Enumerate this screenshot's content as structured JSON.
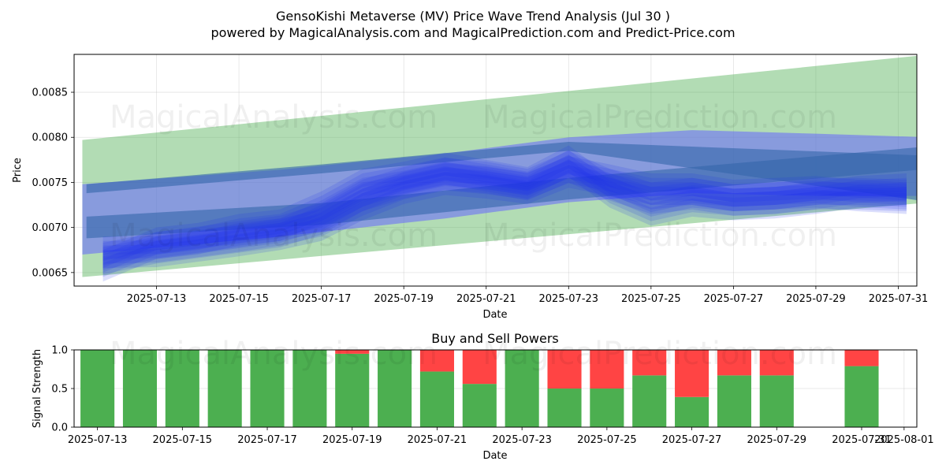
{
  "header": {
    "title": "GensoKishi Metaverse (MV) Price Wave Trend Analysis (Jul 30 )",
    "subtitle": "powered by MagicalAnalysis.com and MagicalPrediction.com and Predict-Price.com"
  },
  "watermarks": [
    "MagicalAnalysis.com",
    "MagicalPrediction.com"
  ],
  "colors": {
    "green_band": "#4caf50",
    "blue_band": "#6666ff",
    "dark_blue": "#3366aa",
    "buy": "#4caf50",
    "sell": "#ff4444"
  },
  "chart_data": [
    {
      "type": "area",
      "xlabel": "Date",
      "ylabel": "Price",
      "ylim": [
        0.00635,
        0.00892
      ],
      "xlim": [
        "2025-07-11",
        "2025-07-31.45"
      ],
      "x_ticks": [
        "2025-07-13",
        "2025-07-15",
        "2025-07-17",
        "2025-07-19",
        "2025-07-21",
        "2025-07-23",
        "2025-07-25",
        "2025-07-27",
        "2025-07-29",
        "2025-07-31"
      ],
      "y_ticks": [
        0.0065,
        0.007,
        0.0075,
        0.008,
        0.0085
      ],
      "grid": true,
      "series": [
        {
          "kind": "band",
          "color": "green",
          "x": [
            "2025-07-11.2",
            "2025-07-31.8"
          ],
          "upper": [
            0.00797,
            0.00892
          ],
          "lower": [
            0.00645,
            0.00728
          ]
        },
        {
          "kind": "band",
          "color": "blue",
          "x": [
            "2025-07-11.2",
            "2025-07-16",
            "2025-07-20",
            "2025-07-23",
            "2025-07-26",
            "2025-07-29",
            "2025-07-31.8"
          ],
          "upper": [
            0.00748,
            0.00764,
            0.00782,
            0.008,
            0.00808,
            0.00804,
            0.008
          ],
          "lower": [
            0.0067,
            0.0069,
            0.0071,
            0.00728,
            0.00738,
            0.00735,
            0.00735
          ]
        },
        {
          "kind": "band",
          "color": "darkblue",
          "x": [
            "2025-07-11.3",
            "2025-07-17",
            "2025-07-23",
            "2025-07-31.5"
          ],
          "upper": [
            0.00748,
            0.0077,
            0.00795,
            0.0078
          ],
          "lower": [
            0.00738,
            0.0076,
            0.00785,
            0.0073
          ]
        },
        {
          "kind": "band",
          "color": "darkblue",
          "x": [
            "2025-07-11.3",
            "2025-07-17",
            "2025-07-23",
            "2025-07-31.5"
          ],
          "upper": [
            0.00712,
            0.00727,
            0.00755,
            0.00789
          ],
          "lower": [
            0.00688,
            0.00703,
            0.00731,
            0.00764
          ]
        },
        {
          "kind": "wave",
          "color": "blue",
          "x": [
            "2025-07-11.7",
            "2025-07-13",
            "2025-07-14",
            "2025-07-15",
            "2025-07-16",
            "2025-07-17",
            "2025-07-18",
            "2025-07-19",
            "2025-07-20",
            "2025-07-21",
            "2025-07-22",
            "2025-07-23",
            "2025-07-24",
            "2025-07-25",
            "2025-07-26",
            "2025-07-27",
            "2025-07-28",
            "2025-07-29",
            "2025-07-30",
            "2025-07-31.2"
          ],
          "values": [
            0.00668,
            0.0068,
            0.00686,
            0.00692,
            0.00698,
            0.00712,
            0.00738,
            0.00752,
            0.00762,
            0.00758,
            0.0075,
            0.0077,
            0.0075,
            0.00735,
            0.0074,
            0.00733,
            0.00735,
            0.0074,
            0.0074,
            0.00738
          ]
        },
        {
          "kind": "wave",
          "color": "blue",
          "x": [
            "2025-07-11.7",
            "2025-07-13",
            "2025-07-14",
            "2025-07-15",
            "2025-07-16",
            "2025-07-17",
            "2025-07-18",
            "2025-07-19",
            "2025-07-20",
            "2025-07-21",
            "2025-07-22",
            "2025-07-23",
            "2025-07-24",
            "2025-07-25",
            "2025-07-26",
            "2025-07-27",
            "2025-07-28",
            "2025-07-29",
            "2025-07-30",
            "2025-07-31.2"
          ],
          "values": [
            0.0066,
            0.00685,
            0.0069,
            0.007,
            0.00705,
            0.00725,
            0.0075,
            0.00758,
            0.00768,
            0.0076,
            0.00752,
            0.00776,
            0.00742,
            0.00722,
            0.00732,
            0.00728,
            0.0073,
            0.00735,
            0.00742,
            0.00745
          ]
        },
        {
          "kind": "wave",
          "color": "blue",
          "x": [
            "2025-07-11.7",
            "2025-07-13",
            "2025-07-14",
            "2025-07-15",
            "2025-07-16",
            "2025-07-17",
            "2025-07-18",
            "2025-07-19",
            "2025-07-20",
            "2025-07-21",
            "2025-07-22",
            "2025-07-23",
            "2025-07-24",
            "2025-07-25",
            "2025-07-26",
            "2025-07-27",
            "2025-07-28",
            "2025-07-29",
            "2025-07-30",
            "2025-07-31.2"
          ],
          "values": [
            0.00675,
            0.00676,
            0.00682,
            0.00688,
            0.00695,
            0.00705,
            0.00728,
            0.00746,
            0.00756,
            0.00752,
            0.00746,
            0.00764,
            0.00755,
            0.00745,
            0.00745,
            0.00738,
            0.0074,
            0.00742,
            0.00738,
            0.00735
          ]
        }
      ]
    },
    {
      "type": "bar",
      "title": "Buy and Sell Powers",
      "xlabel": "Date",
      "ylabel": "Signal Strength",
      "ylim": [
        0,
        1
      ],
      "xlim": [
        "2025-07-12.45",
        "2025-08-01.3"
      ],
      "x_ticks": [
        "2025-07-13",
        "2025-07-15",
        "2025-07-17",
        "2025-07-19",
        "2025-07-21",
        "2025-07-23",
        "2025-07-25",
        "2025-07-27",
        "2025-07-29",
        "2025-07-31",
        "2025-08-01"
      ],
      "y_ticks": [
        "0.0",
        "0.5",
        "1.0"
      ],
      "grid": true,
      "categories": [
        "2025-07-13",
        "2025-07-14",
        "2025-07-15",
        "2025-07-16",
        "2025-07-17",
        "2025-07-18",
        "2025-07-19",
        "2025-07-20",
        "2025-07-21",
        "2025-07-22",
        "2025-07-23",
        "2025-07-24",
        "2025-07-25",
        "2025-07-26",
        "2025-07-27",
        "2025-07-28",
        "2025-07-29",
        "2025-07-31"
      ],
      "series": [
        {
          "name": "Buy",
          "values": [
            1.0,
            1.0,
            1.0,
            1.0,
            1.0,
            1.0,
            0.95,
            1.0,
            0.72,
            0.56,
            1.0,
            0.5,
            0.5,
            0.67,
            0.39,
            0.67,
            0.67,
            0.79
          ]
        },
        {
          "name": "Sell",
          "values": [
            0.0,
            0.0,
            0.0,
            0.0,
            0.0,
            0.0,
            0.05,
            0.0,
            0.28,
            0.44,
            0.0,
            0.5,
            0.5,
            0.33,
            0.61,
            0.33,
            0.33,
            0.21
          ]
        }
      ]
    }
  ]
}
